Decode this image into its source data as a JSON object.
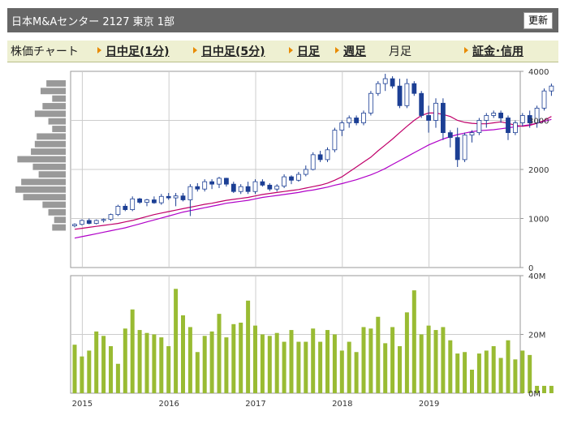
{
  "header": {
    "title": "日本M&Aセンター 2127 東京 1部",
    "refresh": "更新"
  },
  "tabs": [
    {
      "label": "株価チャート",
      "link": false
    },
    {
      "label": "日中足(1分)",
      "link": true
    },
    {
      "label": "日中足(5分)",
      "link": true
    },
    {
      "label": "日足",
      "link": true
    },
    {
      "label": "週足",
      "link": true
    },
    {
      "label": "月足",
      "link": false
    },
    {
      "label": "証金･信用",
      "link": true
    }
  ],
  "colors": {
    "up": "#ffffff",
    "down": "#1c3f94",
    "ma_short": "#c0006a",
    "ma_long": "#b000c8",
    "volume": "#99bb33",
    "grid": "#cccccc",
    "profile": "#999999"
  },
  "chart_data": [
    {
      "type": "candlestick",
      "period": "monthly",
      "x_labels": [
        "2015",
        "2016",
        "2017",
        "2018",
        "2019"
      ],
      "y_ticks": [
        0,
        1000,
        2000,
        3000,
        4000
      ],
      "ylim": [
        0,
        4000
      ],
      "ohlc": [
        [
          850,
          900,
          820,
          880
        ],
        [
          880,
          980,
          860,
          960
        ],
        [
          960,
          1000,
          880,
          900
        ],
        [
          900,
          980,
          880,
          960
        ],
        [
          960,
          1000,
          920,
          980
        ],
        [
          980,
          1100,
          950,
          1080
        ],
        [
          1080,
          1280,
          1050,
          1250
        ],
        [
          1250,
          1300,
          1150,
          1180
        ],
        [
          1180,
          1450,
          1150,
          1400
        ],
        [
          1400,
          1420,
          1300,
          1330
        ],
        [
          1330,
          1400,
          1250,
          1380
        ],
        [
          1380,
          1450,
          1300,
          1320
        ],
        [
          1320,
          1500,
          1280,
          1450
        ],
        [
          1450,
          1520,
          1380,
          1420
        ],
        [
          1420,
          1520,
          1250,
          1460
        ],
        [
          1460,
          1520,
          1350,
          1380
        ],
        [
          1380,
          1700,
          1050,
          1650
        ],
        [
          1650,
          1720,
          1550,
          1600
        ],
        [
          1600,
          1800,
          1550,
          1750
        ],
        [
          1750,
          1800,
          1600,
          1700
        ],
        [
          1700,
          1850,
          1620,
          1820
        ],
        [
          1820,
          1830,
          1650,
          1700
        ],
        [
          1700,
          1750,
          1520,
          1550
        ],
        [
          1550,
          1700,
          1500,
          1650
        ],
        [
          1650,
          1750,
          1500,
          1550
        ],
        [
          1550,
          1800,
          1500,
          1750
        ],
        [
          1750,
          1800,
          1650,
          1680
        ],
        [
          1680,
          1720,
          1560,
          1600
        ],
        [
          1600,
          1700,
          1550,
          1660
        ],
        [
          1660,
          1900,
          1620,
          1850
        ],
        [
          1850,
          1880,
          1700,
          1780
        ],
        [
          1780,
          1950,
          1750,
          1900
        ],
        [
          1900,
          2080,
          1860,
          2000
        ],
        [
          2000,
          2350,
          1980,
          2300
        ],
        [
          2300,
          2380,
          2150,
          2200
        ],
        [
          2200,
          2450,
          2150,
          2400
        ],
        [
          2400,
          2850,
          2350,
          2800
        ],
        [
          2800,
          3000,
          2680,
          2950
        ],
        [
          2950,
          3100,
          2850,
          3050
        ],
        [
          3050,
          3100,
          2900,
          2950
        ],
        [
          2950,
          3200,
          2900,
          3150
        ],
        [
          3150,
          3600,
          3100,
          3550
        ],
        [
          3550,
          3800,
          3500,
          3750
        ],
        [
          3750,
          3950,
          3600,
          3850
        ],
        [
          3850,
          3900,
          3650,
          3700
        ],
        [
          3700,
          3850,
          3250,
          3300
        ],
        [
          3300,
          3850,
          3250,
          3750
        ],
        [
          3750,
          3800,
          3500,
          3550
        ],
        [
          3550,
          3600,
          3050,
          3100
        ],
        [
          3100,
          3300,
          2750,
          3000
        ],
        [
          3000,
          3450,
          2850,
          3350
        ],
        [
          3350,
          3450,
          2600,
          2750
        ],
        [
          2750,
          2800,
          2450,
          2650
        ],
        [
          2650,
          2850,
          2050,
          2200
        ],
        [
          2200,
          2750,
          2150,
          2700
        ],
        [
          2700,
          2800,
          2550,
          2750
        ],
        [
          2750,
          3050,
          2700,
          3000
        ],
        [
          3000,
          3150,
          2850,
          3100
        ],
        [
          3100,
          3200,
          3050,
          3150
        ],
        [
          3150,
          3200,
          2950,
          3050
        ],
        [
          3050,
          3100,
          2600,
          2750
        ],
        [
          2750,
          3000,
          2700,
          2950
        ],
        [
          2950,
          3150,
          2880,
          3100
        ],
        [
          3100,
          3200,
          2850,
          2950
        ],
        [
          2950,
          3300,
          2850,
          3250
        ],
        [
          3250,
          3650,
          3200,
          3600
        ],
        [
          3600,
          3750,
          3500,
          3700
        ]
      ],
      "ma_short": [
        780,
        800,
        820,
        840,
        860,
        880,
        900,
        930,
        960,
        1000,
        1040,
        1080,
        1110,
        1140,
        1170,
        1200,
        1230,
        1260,
        1290,
        1310,
        1340,
        1370,
        1390,
        1410,
        1430,
        1460,
        1490,
        1510,
        1530,
        1550,
        1570,
        1590,
        1620,
        1650,
        1680,
        1720,
        1780,
        1850,
        1950,
        2050,
        2150,
        2250,
        2380,
        2500,
        2620,
        2750,
        2880,
        3000,
        3100,
        3150,
        3150,
        3120,
        3080,
        3000,
        2960,
        2940,
        2930,
        2930,
        2950,
        2970,
        2940,
        2900,
        2880,
        2900,
        2940,
        3000,
        3080
      ],
      "ma_long": [
        600,
        630,
        660,
        690,
        720,
        750,
        780,
        810,
        850,
        890,
        930,
        970,
        1010,
        1050,
        1090,
        1130,
        1160,
        1190,
        1220,
        1250,
        1280,
        1310,
        1330,
        1350,
        1370,
        1400,
        1430,
        1450,
        1470,
        1490,
        1510,
        1530,
        1560,
        1580,
        1610,
        1640,
        1680,
        1710,
        1750,
        1790,
        1840,
        1890,
        1950,
        2020,
        2100,
        2180,
        2260,
        2340,
        2420,
        2500,
        2560,
        2620,
        2670,
        2710,
        2740,
        2770,
        2790,
        2800,
        2810,
        2830,
        2850,
        2870,
        2890,
        2910,
        2940,
        2980,
        3020
      ]
    },
    {
      "type": "bar",
      "name": "volume",
      "y_ticks": [
        "0M",
        "20M",
        "40M"
      ],
      "ylim": [
        0,
        40
      ],
      "values": [
        16.5,
        12.5,
        14.5,
        21,
        19.5,
        16,
        10,
        22,
        28.5,
        21.5,
        20.5,
        20,
        19,
        16,
        35.5,
        26.5,
        22.5,
        14,
        19.5,
        21,
        27,
        19,
        23.5,
        24,
        31.5,
        23,
        20,
        19.5,
        20.5,
        17.5,
        21.5,
        17.5,
        17.5,
        22,
        17.5,
        21.5,
        20,
        14.5,
        17.5,
        14,
        22.5,
        22,
        26,
        17,
        22.5,
        16,
        27.5,
        35,
        20,
        23,
        21.5,
        22.5,
        18,
        13.5,
        14,
        8,
        13.5,
        14.5,
        16,
        12,
        18,
        11.5,
        14.5,
        13,
        2.5,
        2.5,
        2.5
      ]
    },
    {
      "type": "bar",
      "name": "price-volume-profile",
      "values": [
        10,
        13,
        7,
        12,
        16,
        9,
        7,
        15,
        16,
        18,
        25,
        17,
        14,
        23,
        26,
        22,
        12,
        9,
        6,
        7
      ]
    }
  ]
}
